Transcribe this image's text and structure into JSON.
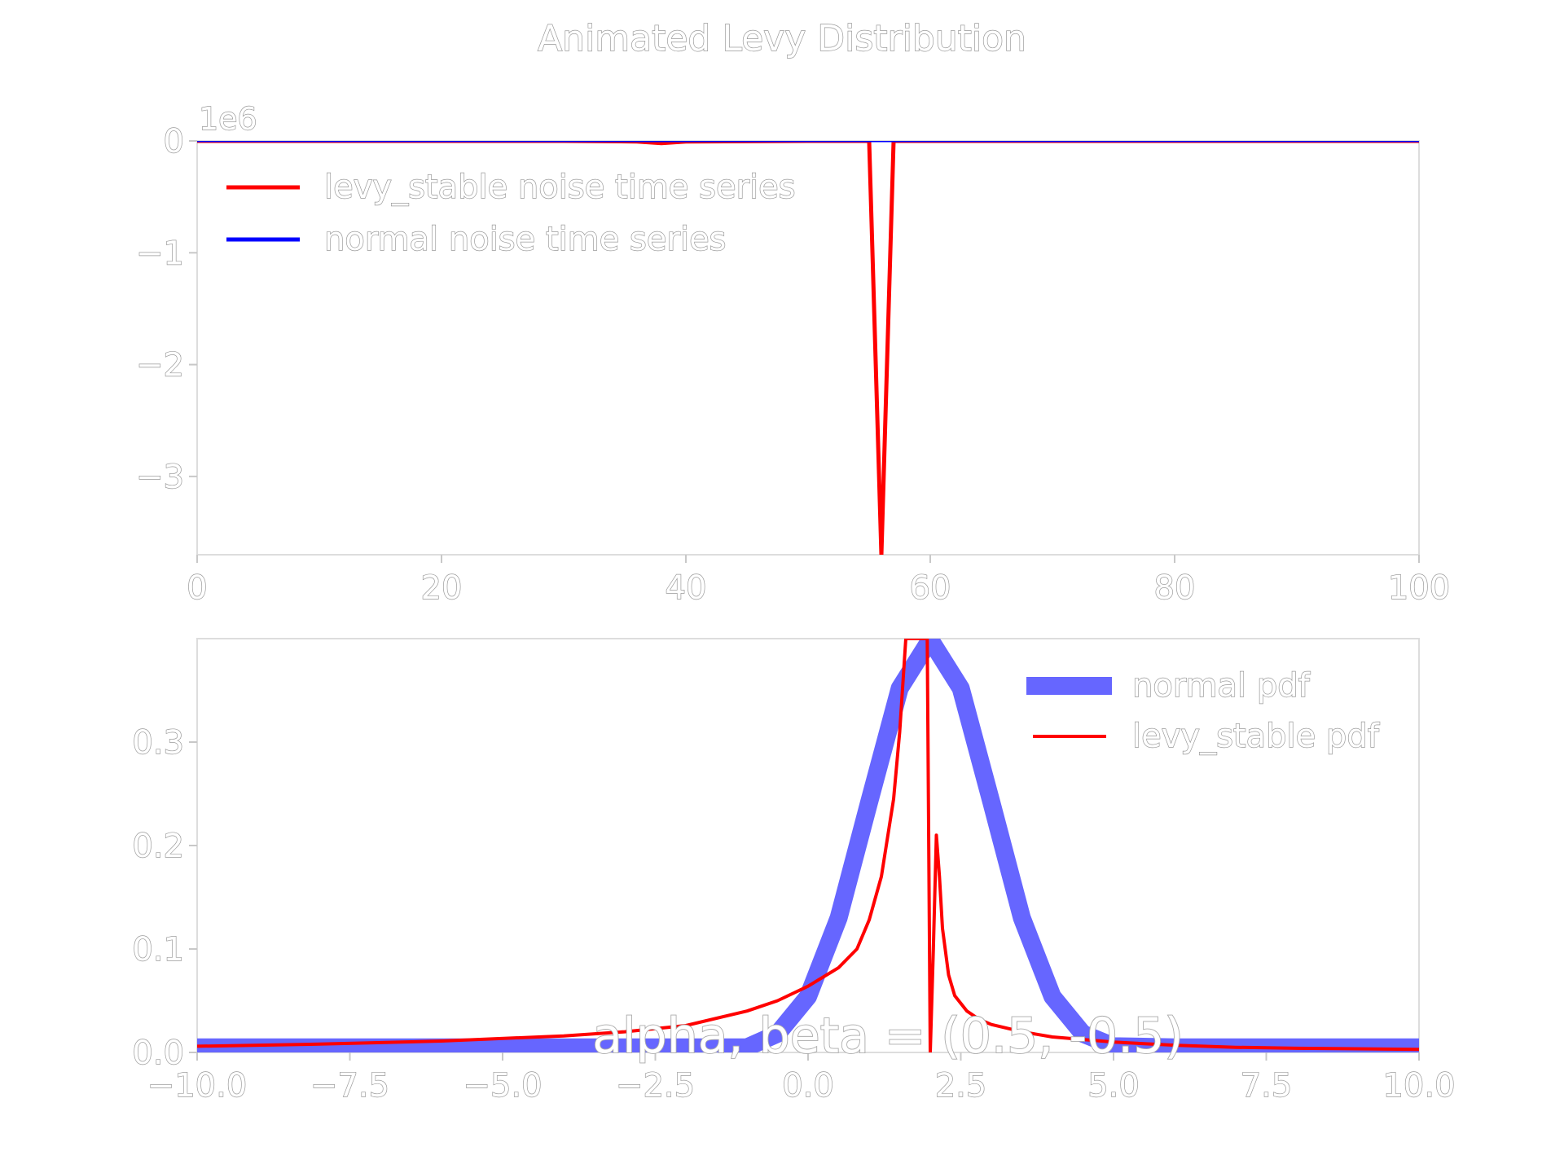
{
  "figure": {
    "title": "Animated Levy Distribution",
    "annotation": "alpha, beta = (0.5, -0.5)"
  },
  "colors": {
    "levy": "#ff0000",
    "normal_line": "#0000ff",
    "normal_pdf": "#6666ff",
    "text_outline": "#999999"
  },
  "chart_data": [
    {
      "type": "line",
      "offset_label": "1e6",
      "xlim": [
        0,
        100
      ],
      "ylim": [
        -3.7,
        0
      ],
      "x_ticks": [
        0,
        20,
        40,
        60,
        80,
        100
      ],
      "x_tick_labels": [
        "0",
        "20",
        "40",
        "60",
        "80",
        "100"
      ],
      "y_ticks": [
        0,
        -1,
        -2,
        -3
      ],
      "y_tick_labels": [
        "0",
        "−1",
        "−2",
        "−3"
      ],
      "legend_position": "upper-left",
      "series": [
        {
          "name": "levy_stable noise time series",
          "color": "#ff0000",
          "x": [
            0,
            10,
            20,
            30,
            36,
            38,
            40,
            50,
            54,
            55,
            56,
            57,
            58,
            60,
            70,
            80,
            90,
            100
          ],
          "y": [
            0,
            0,
            0,
            0,
            -0.005,
            -0.02,
            -0.005,
            0,
            0,
            0,
            -3.7,
            0,
            0,
            0,
            0,
            0,
            0,
            0
          ]
        },
        {
          "name": "normal noise time series",
          "color": "#0000ff",
          "x": [
            0,
            100
          ],
          "y": [
            0,
            0
          ]
        }
      ]
    },
    {
      "type": "line",
      "xlim": [
        -10,
        10
      ],
      "ylim": [
        0,
        0.4
      ],
      "x_ticks": [
        -10,
        -7.5,
        -5,
        -2.5,
        0,
        2.5,
        5,
        7.5,
        10
      ],
      "x_tick_labels": [
        "−10.0",
        "−7.5",
        "−5.0",
        "−2.5",
        "0.0",
        "2.5",
        "5.0",
        "7.5",
        "10.0"
      ],
      "y_ticks": [
        0,
        0.1,
        0.2,
        0.3
      ],
      "y_tick_labels": [
        "0.0",
        "0.1",
        "0.2",
        "0.3"
      ],
      "legend_position": "upper-right",
      "series": [
        {
          "name": "normal pdf",
          "color": "#6666ff",
          "x": [
            -10,
            -6,
            -4,
            -3,
            -2,
            -1.5,
            -1,
            -0.5,
            0,
            0.5,
            1,
            1.5,
            2,
            2.5,
            3,
            3.5,
            4,
            4.5,
            5,
            6,
            8,
            10
          ],
          "y": [
            0.005,
            0.005,
            0.005,
            0.005,
            0.005,
            0.005,
            0.005,
            0.018,
            0.054,
            0.13,
            0.242,
            0.352,
            0.399,
            0.352,
            0.242,
            0.13,
            0.054,
            0.018,
            0.006,
            0.005,
            0.005,
            0.005
          ]
        },
        {
          "name": "levy_stable pdf",
          "color": "#ff0000",
          "x": [
            -10,
            -8,
            -6,
            -4,
            -3,
            -2,
            -1,
            -0.5,
            0,
            0.5,
            0.8,
            1,
            1.2,
            1.4,
            1.5,
            1.6,
            1.8,
            1.95,
            2,
            2.05,
            2.1,
            2.15,
            2.2,
            2.3,
            2.4,
            2.6,
            2.8,
            3,
            3.5,
            4,
            5,
            6,
            7,
            8,
            10
          ],
          "y": [
            0.006,
            0.008,
            0.011,
            0.016,
            0.02,
            0.026,
            0.04,
            0.05,
            0.064,
            0.082,
            0.1,
            0.128,
            0.17,
            0.245,
            0.31,
            0.4,
            0.4,
            0.4,
            0.0,
            0.1,
            0.21,
            0.17,
            0.12,
            0.075,
            0.055,
            0.04,
            0.032,
            0.027,
            0.02,
            0.015,
            0.01,
            0.007,
            0.005,
            0.004,
            0.003
          ]
        }
      ]
    }
  ]
}
